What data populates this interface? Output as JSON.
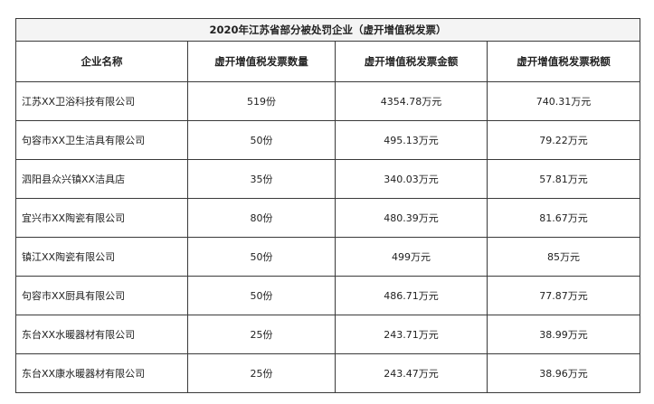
{
  "title": "2020年江苏省部分被处罚企业（虚开增值税发票）",
  "headers": [
    "企业名称",
    "虚开增值税发票数量",
    "虚开增值税发票金额",
    "虚开增值税发票税额"
  ],
  "rows": [
    {
      "name": "江苏XX卫浴科技有限公司",
      "count": "519份",
      "amount": "4354.78万元",
      "tax": "740.31万元"
    },
    {
      "name": "句容市XX卫生洁具有限公司",
      "count": "50份",
      "amount": "495.13万元",
      "tax": "79.22万元"
    },
    {
      "name": "泗阳县众兴镇XX洁具店",
      "count": "35份",
      "amount": "340.03万元",
      "tax": "57.81万元"
    },
    {
      "name": "宜兴市XX陶瓷有限公司",
      "count": "80份",
      "amount": "480.39万元",
      "tax": "81.67万元"
    },
    {
      "name": "镇江XX陶瓷有限公司",
      "count": "50份",
      "amount": "499万元",
      "tax": "85万元"
    },
    {
      "name": "句容市XX厨具有限公司",
      "count": "50份",
      "amount": "486.71万元",
      "tax": "77.87万元"
    },
    {
      "name": "东台XX水暖器材有限公司",
      "count": "25份",
      "amount": "243.71万元",
      "tax": "38.99万元"
    },
    {
      "name": "东台XX康水暖器材有限公司",
      "count": "25份",
      "amount": "243.47万元",
      "tax": "38.96万元"
    }
  ]
}
